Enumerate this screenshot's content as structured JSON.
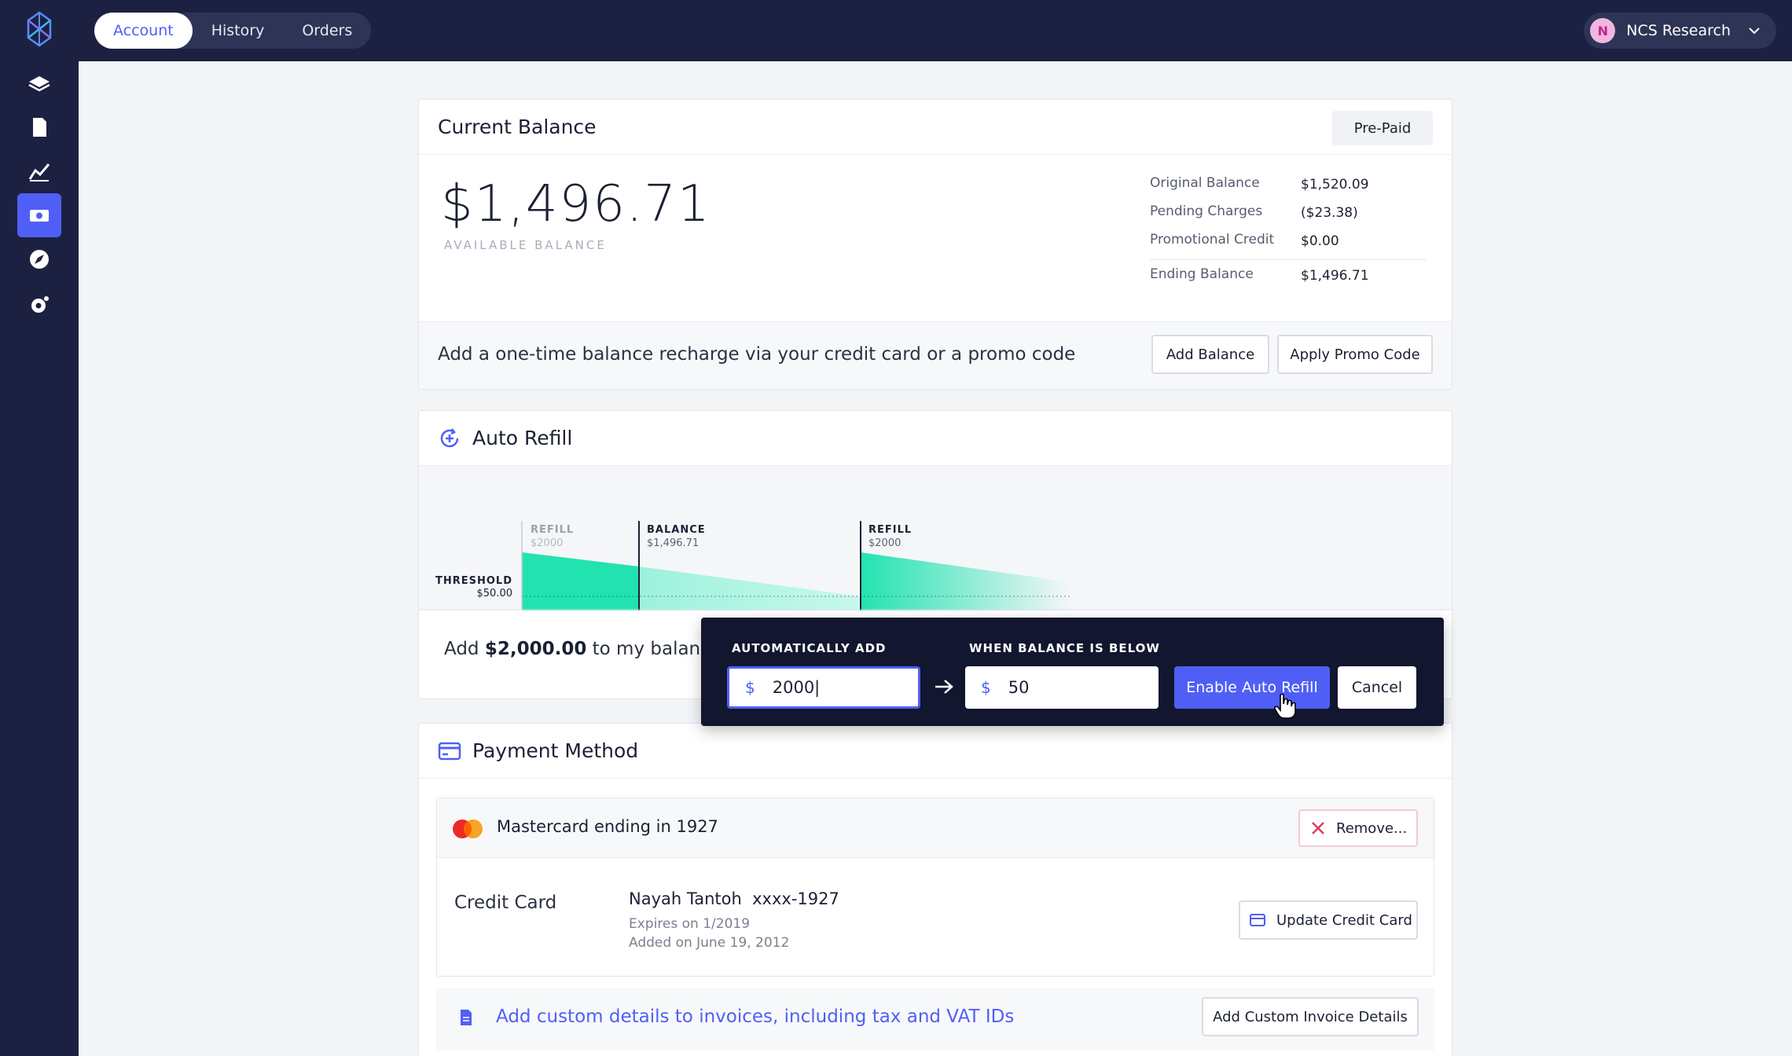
{
  "header": {
    "tabs": [
      {
        "label": "Account",
        "active": true
      },
      {
        "label": "History",
        "active": false
      },
      {
        "label": "Orders",
        "active": false
      }
    ],
    "user": {
      "initial": "N",
      "name": "NCS Research"
    }
  },
  "sidebar": {
    "items": [
      "layers-icon",
      "document-icon",
      "chart-icon",
      "billing-icon",
      "rocket-icon",
      "settings-icon"
    ],
    "active_index": 3
  },
  "balance": {
    "title": "Current Balance",
    "plan_badge": "Pre-Paid",
    "amount": "$1,496.71",
    "amount_label": "AVAILABLE BALANCE",
    "summary": [
      {
        "label": "Original Balance",
        "value": "$1,520.09"
      },
      {
        "label": "Pending Charges",
        "value": "($23.38)"
      },
      {
        "label": "Promotional Credit",
        "value": "$0.00"
      },
      {
        "label": "Ending Balance",
        "value": "$1,496.71"
      }
    ],
    "recharge_text": "Add a one-time balance recharge via your credit card or a promo code",
    "add_balance_label": "Add Balance",
    "apply_promo_label": "Apply Promo Code"
  },
  "auto_refill": {
    "title": "Auto Refill",
    "chart": {
      "refill_left_label": "REFILL",
      "refill_left_value": "$2000",
      "balance_label": "BALANCE",
      "balance_value": "$1,496.71",
      "refill_right_label": "REFILL",
      "refill_right_value": "$2000",
      "threshold_label": "THRESHOLD",
      "threshold_value": "$50.00"
    },
    "sentence_prefix": "Add ",
    "sentence_amount": "$2,000.00",
    "sentence_suffix": " to my balance a"
  },
  "popup": {
    "add_label": "AUTOMATICALLY ADD",
    "below_label": "WHEN BALANCE IS BELOW",
    "currency": "$",
    "add_value": "2000|",
    "below_value": "50",
    "enable_label": "Enable Auto Refill",
    "cancel_label": "Cancel"
  },
  "payment": {
    "title": "Payment Method",
    "card_title": "Mastercard ending in 1927",
    "remove_label": "Remove...",
    "type_label": "Credit Card",
    "holder": "Nayah Tantoh  xxxx-1927",
    "expires": "Expires on 1/2019",
    "added": "Added on June 19, 2012",
    "update_label": "Update Credit Card",
    "invoice_text": "Add custom details to invoices, including tax and VAT IDs",
    "invoice_button": "Add Custom Invoice Details"
  },
  "colors": {
    "accent": "#4f5ff5",
    "nav_bg": "#1c2142",
    "refill_green": "#22e3b0",
    "danger": "#e03a5c"
  }
}
